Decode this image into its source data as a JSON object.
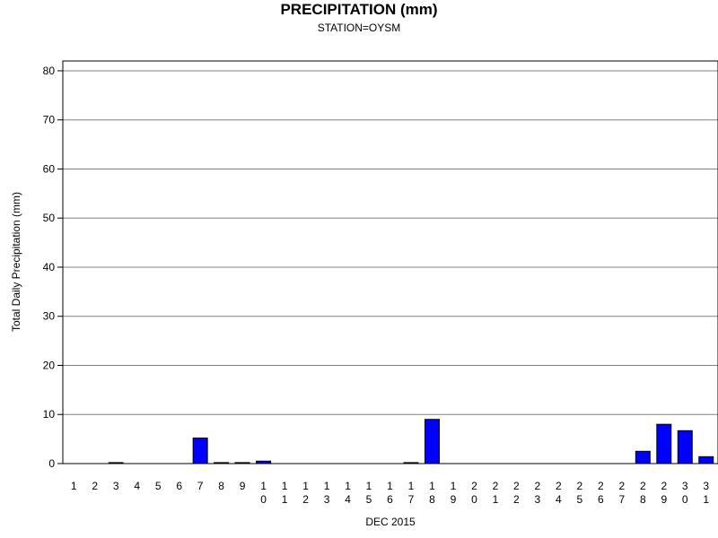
{
  "chart_data": {
    "type": "bar",
    "title": "PRECIPITATION (mm)",
    "subtitle": "STATION=OYSM",
    "xlabel": "DEC 2015",
    "ylabel": "Total Daily Precipitation (mm)",
    "ylim": [
      0,
      82
    ],
    "yticks": [
      0,
      10,
      20,
      30,
      40,
      50,
      60,
      70,
      80
    ],
    "grid": true,
    "categories": [
      "1",
      "2",
      "3",
      "4",
      "5",
      "6",
      "7",
      "8",
      "9",
      "10",
      "11",
      "12",
      "13",
      "14",
      "15",
      "16",
      "17",
      "18",
      "19",
      "20",
      "21",
      "22",
      "23",
      "24",
      "25",
      "26",
      "27",
      "28",
      "29",
      "30",
      "31"
    ],
    "values": [
      0,
      0,
      0.2,
      0,
      0,
      0,
      5.2,
      0.2,
      0.2,
      0.5,
      0,
      0,
      0,
      0,
      0,
      0,
      0.2,
      9.0,
      0,
      0,
      0,
      0,
      0,
      0,
      0,
      0,
      0,
      2.5,
      8.0,
      6.7,
      1.4
    ],
    "bar_color": "#0000ff",
    "bar_outline": "#000000",
    "grid_color": "#808080"
  }
}
